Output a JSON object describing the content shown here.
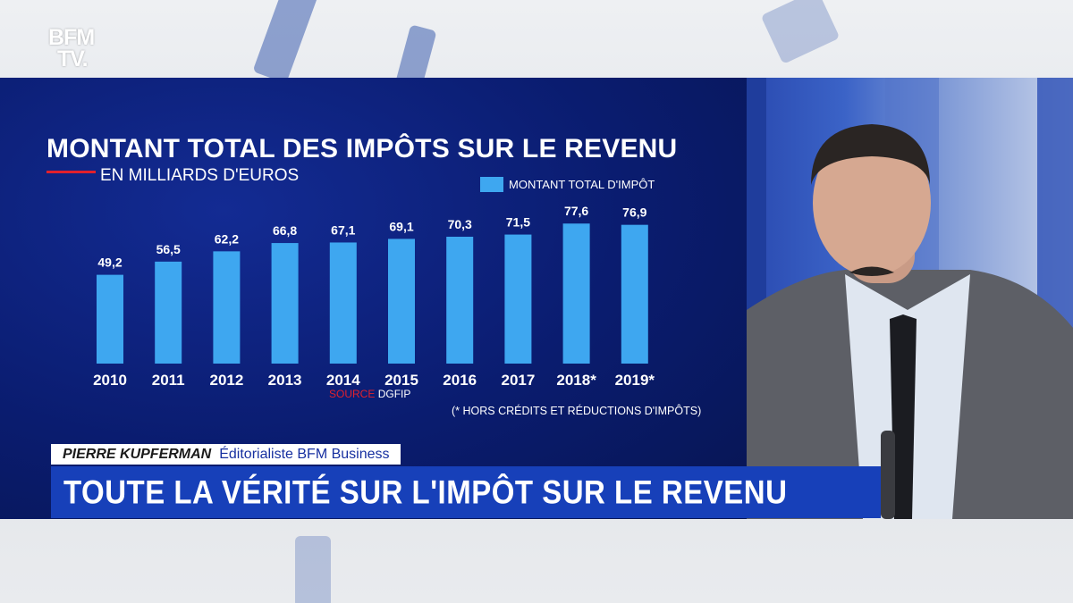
{
  "channel": {
    "logo_line1": "BFM",
    "logo_line2": "TV."
  },
  "graphic": {
    "title": "MONTANT TOTAL DES IMPÔTS SUR LE REVENU",
    "subtitle": "EN MILLIARDS D'EUROS",
    "legend": "MONTANT TOTAL D'IMPÔT",
    "source_label": "SOURCE",
    "source_value": "DGFIP",
    "footnote": "(* HORS CRÉDITS ET RÉDUCTIONS D'IMPÔTS)"
  },
  "chart_data": {
    "type": "bar",
    "title": "MONTANT TOTAL DES IMPÔTS SUR LE REVENU",
    "subtitle": "EN MILLIARDS D'EUROS",
    "categories": [
      "2010",
      "2011",
      "2012",
      "2013",
      "2014",
      "2015",
      "2016",
      "2017",
      "2018*",
      "2019*"
    ],
    "series": [
      {
        "name": "MONTANT TOTAL D'IMPÔT",
        "values": [
          49.2,
          56.5,
          62.2,
          66.8,
          67.1,
          69.1,
          70.3,
          71.5,
          77.6,
          76.9
        ],
        "labels": [
          "49,2",
          "56,5",
          "62,2",
          "66,8",
          "67,1",
          "69,1",
          "70,3",
          "71,5",
          "77,6",
          "76,9"
        ],
        "color": "#3ea7f0"
      }
    ],
    "xlabel": "",
    "ylabel": "",
    "ylim": [
      0,
      80
    ],
    "grid": false,
    "legend_position": "top-right"
  },
  "lower_third": {
    "name": "PIERRE KUPFERMAN",
    "role": "Éditorialiste BFM Business",
    "headline": "TOUTE LA VÉRITÉ SUR L'IMPÔT SUR LE REVENU"
  },
  "colors": {
    "panel": "#0d2280",
    "bar": "#3ea7f0",
    "accent_red": "#e2202c",
    "headline_bar": "#1740b9"
  }
}
